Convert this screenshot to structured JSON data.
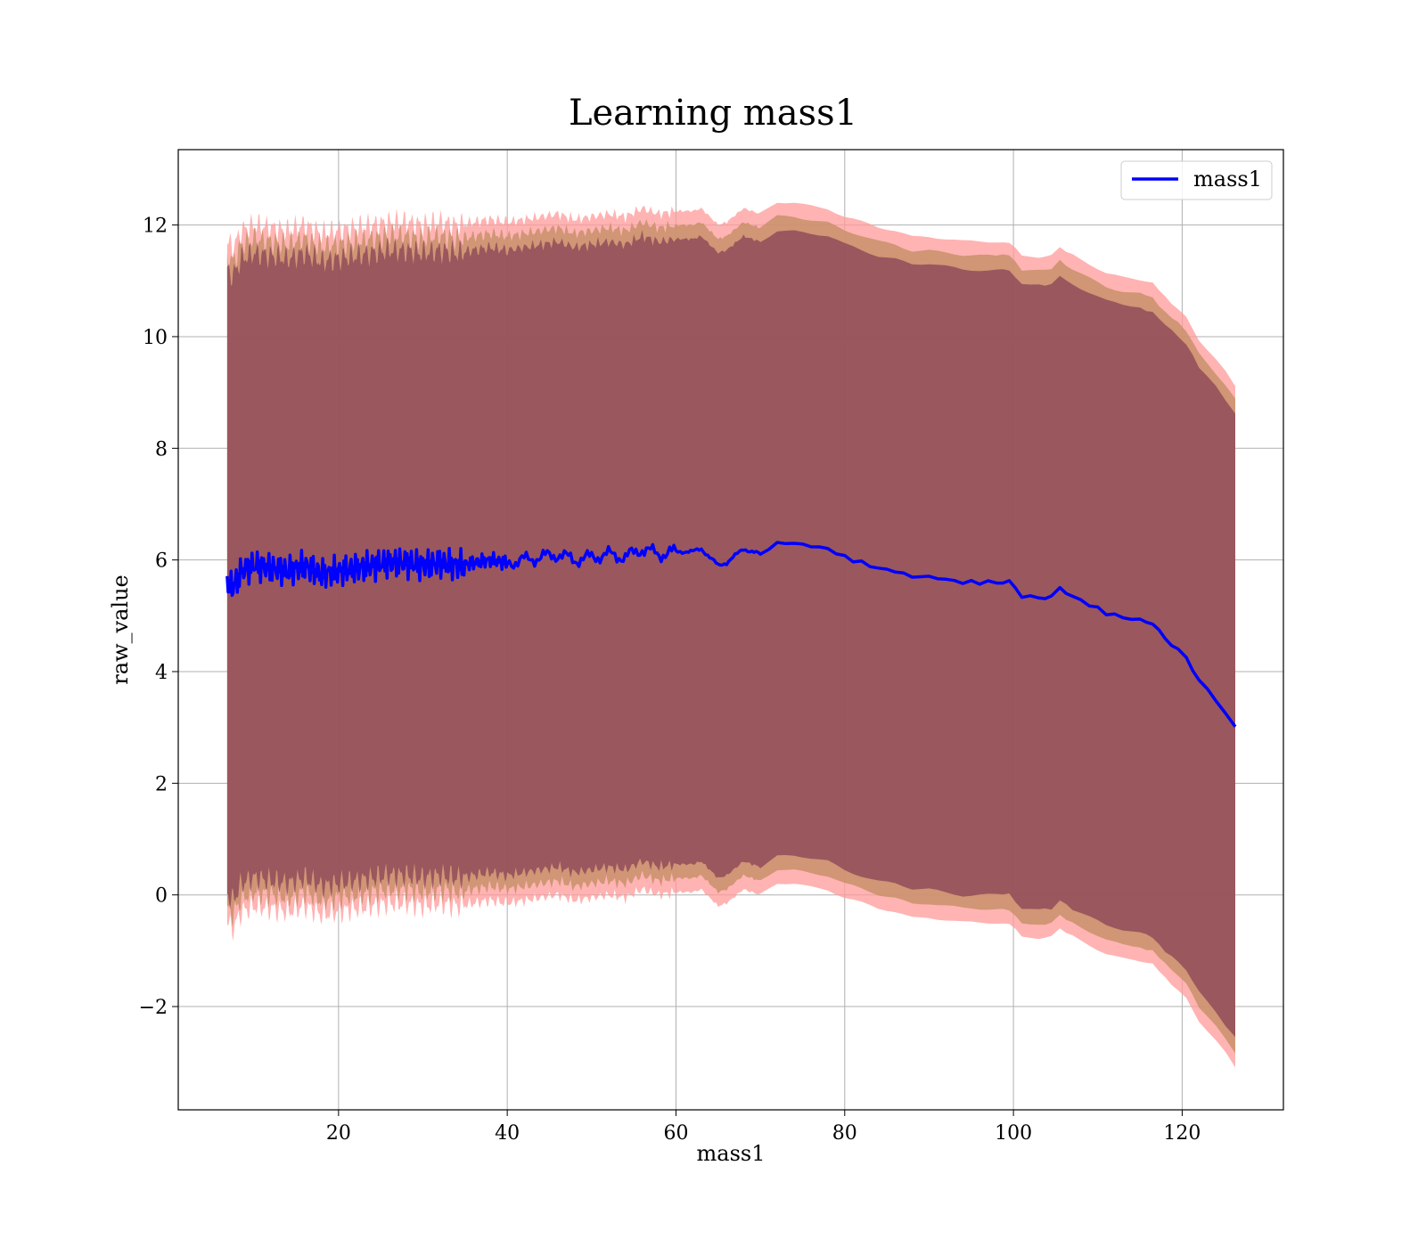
{
  "chart_data": {
    "type": "line",
    "title": "Learning mass1",
    "xlabel": "mass1",
    "ylabel": "raw_value",
    "xlim": [
      1,
      132
    ],
    "ylim": [
      -3.85,
      13.35
    ],
    "xticks": [
      20,
      40,
      60,
      80,
      100,
      120
    ],
    "yticks": [
      -2,
      0,
      2,
      4,
      6,
      8,
      10,
      12
    ],
    "xtick_labels": [
      "20",
      "40",
      "60",
      "80",
      "100",
      "120"
    ],
    "ytick_labels": [
      "−2",
      "0",
      "2",
      "4",
      "6",
      "8",
      "10",
      "12"
    ],
    "grid": true,
    "legend": {
      "position": "top-right",
      "entries": [
        "mass1"
      ]
    },
    "colors": {
      "line": "#0000ff",
      "inner_band": "#8b4557",
      "middle_band": "#c8906a",
      "outer_band": "#ff9a9a"
    },
    "series": [
      {
        "name": "mass1",
        "x": [
          6.8,
          7.5,
          8.5,
          10,
          12,
          14,
          16,
          18,
          20,
          22,
          24,
          26,
          28,
          30,
          32,
          34,
          36,
          38,
          40,
          42,
          44,
          46,
          48,
          50,
          52,
          54,
          56,
          58,
          60,
          62,
          63,
          65,
          66,
          68,
          70,
          72,
          74,
          76,
          78,
          80,
          82,
          84,
          86,
          88,
          90,
          92,
          94,
          96,
          98,
          99.5,
          101,
          103,
          104.5,
          105.5,
          107,
          109,
          111,
          113,
          115,
          116.5,
          118,
          119.5,
          120.5,
          122,
          124,
          126.3
        ],
        "y": [
          5.6,
          5.5,
          5.8,
          5.9,
          5.85,
          5.8,
          5.9,
          5.75,
          5.8,
          5.85,
          5.9,
          5.95,
          5.95,
          5.9,
          5.95,
          5.9,
          5.95,
          6.0,
          5.95,
          6.0,
          6.05,
          6.1,
          6.0,
          6.05,
          6.1,
          6.05,
          6.2,
          6.1,
          6.15,
          6.15,
          6.2,
          5.9,
          5.95,
          6.2,
          6.1,
          6.3,
          6.3,
          6.25,
          6.2,
          6.05,
          5.95,
          5.85,
          5.8,
          5.7,
          5.7,
          5.65,
          5.6,
          5.6,
          5.6,
          5.6,
          5.35,
          5.33,
          5.35,
          5.5,
          5.35,
          5.2,
          5.05,
          4.97,
          4.92,
          4.85,
          4.6,
          4.4,
          4.25,
          3.85,
          3.5,
          3.03
        ],
        "band_halfwidths": {
          "inner": 5.6,
          "middle": 5.85,
          "outer": 6.1
        }
      }
    ]
  }
}
